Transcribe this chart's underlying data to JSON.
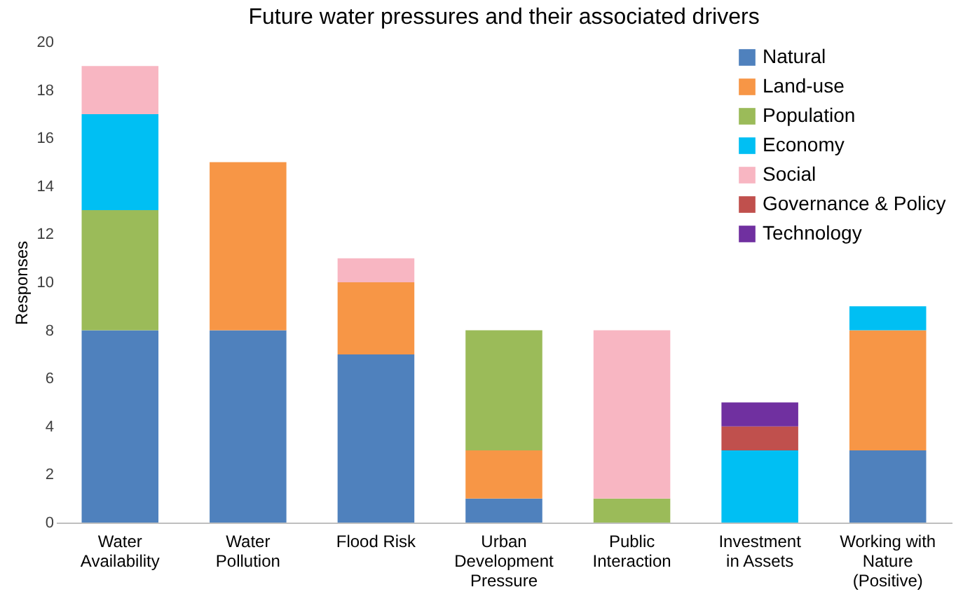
{
  "chart_data": {
    "type": "bar",
    "title": "Future water pressures and their associated drivers",
    "ylabel": "Responses",
    "stacked": true,
    "legend": "top right",
    "grid": false,
    "categories": [
      "Water Availability",
      "Water Pollution",
      "Flood Risk",
      "Urban Development Pressure",
      "Public Interaction",
      "Investment in Assets",
      "Working with Nature (Positive)"
    ],
    "ylim": [
      0,
      20
    ],
    "yticks": [
      0,
      2,
      4,
      6,
      8,
      10,
      12,
      14,
      16,
      18,
      20
    ],
    "series": [
      {
        "name": "Natural",
        "color": "#4f81bd",
        "values": [
          8,
          8,
          7,
          1,
          null,
          null,
          3
        ]
      },
      {
        "name": "Land-use",
        "color": "#f79646",
        "values": [
          null,
          7,
          3,
          2,
          null,
          null,
          5
        ]
      },
      {
        "name": "Population",
        "color": "#9bbb59",
        "values": [
          5,
          null,
          null,
          5,
          1,
          null,
          null
        ]
      },
      {
        "name": "Economy",
        "color": "#00bff3",
        "values": [
          4,
          null,
          null,
          null,
          null,
          3,
          1
        ]
      },
      {
        "name": "Social",
        "color": "#f8b6c2",
        "values": [
          2,
          null,
          1,
          null,
          7,
          null,
          null
        ]
      },
      {
        "name": "Governance & Policy",
        "color": "#c0504d",
        "values": [
          null,
          null,
          null,
          null,
          null,
          1,
          null
        ]
      },
      {
        "name": "Technology",
        "color": "#7030a0",
        "values": [
          null,
          null,
          null,
          null,
          null,
          1,
          null
        ]
      }
    ]
  }
}
